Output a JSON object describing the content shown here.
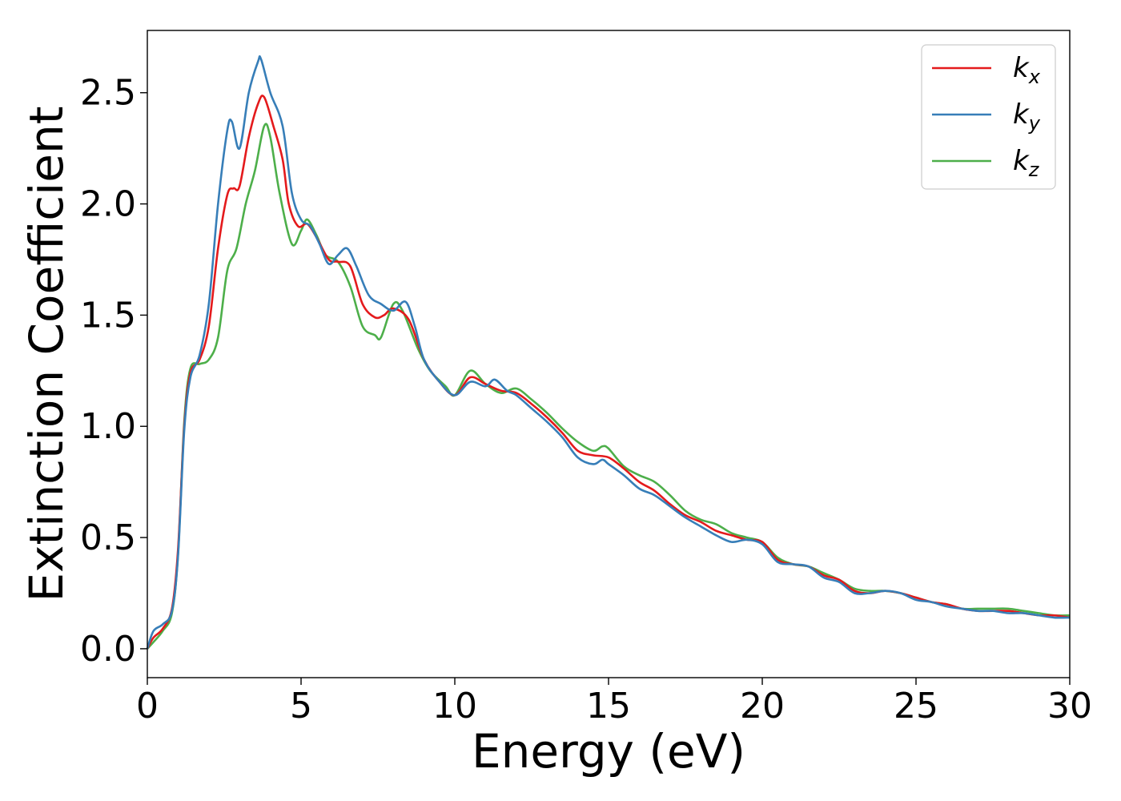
{
  "chart_data": {
    "type": "line",
    "xlabel": "Energy (eV)",
    "ylabel": "Extinction Coefficient",
    "xlim": [
      0,
      30
    ],
    "ylim": [
      -0.13,
      2.78
    ],
    "x_ticks": [
      0,
      5,
      10,
      15,
      20,
      25,
      30
    ],
    "y_ticks": [
      0.0,
      0.5,
      1.0,
      1.5,
      2.0,
      2.5
    ],
    "x_tick_labels": [
      "0",
      "5",
      "10",
      "15",
      "20",
      "25",
      "30"
    ],
    "y_tick_labels": [
      "0.0",
      "0.5",
      "1.0",
      "1.5",
      "2.0",
      "2.5"
    ],
    "grid": false,
    "legend_position": "top-right",
    "series": [
      {
        "name": "k_x",
        "label_base": "k",
        "label_sub": "x",
        "color": "#e41a1c",
        "points": [
          [
            0,
            0.0
          ],
          [
            0.2,
            0.05
          ],
          [
            0.5,
            0.09
          ],
          [
            0.8,
            0.18
          ],
          [
            1.0,
            0.45
          ],
          [
            1.2,
            1.0
          ],
          [
            1.4,
            1.24
          ],
          [
            1.7,
            1.3
          ],
          [
            2.0,
            1.45
          ],
          [
            2.3,
            1.8
          ],
          [
            2.6,
            2.04
          ],
          [
            2.8,
            2.07
          ],
          [
            3.0,
            2.08
          ],
          [
            3.3,
            2.3
          ],
          [
            3.6,
            2.45
          ],
          [
            3.8,
            2.48
          ],
          [
            4.1,
            2.35
          ],
          [
            4.4,
            2.2
          ],
          [
            4.6,
            2.0
          ],
          [
            4.9,
            1.9
          ],
          [
            5.2,
            1.91
          ],
          [
            5.5,
            1.85
          ],
          [
            5.9,
            1.75
          ],
          [
            6.2,
            1.74
          ],
          [
            6.6,
            1.72
          ],
          [
            7.0,
            1.55
          ],
          [
            7.4,
            1.49
          ],
          [
            7.7,
            1.5
          ],
          [
            8.0,
            1.53
          ],
          [
            8.5,
            1.48
          ],
          [
            9.0,
            1.3
          ],
          [
            9.5,
            1.2
          ],
          [
            10.0,
            1.14
          ],
          [
            10.5,
            1.22
          ],
          [
            11.0,
            1.19
          ],
          [
            11.5,
            1.16
          ],
          [
            12.0,
            1.15
          ],
          [
            12.5,
            1.1
          ],
          [
            13.0,
            1.04
          ],
          [
            13.5,
            0.97
          ],
          [
            14.0,
            0.89
          ],
          [
            14.5,
            0.87
          ],
          [
            15.0,
            0.86
          ],
          [
            15.5,
            0.81
          ],
          [
            16.0,
            0.75
          ],
          [
            16.5,
            0.71
          ],
          [
            17.0,
            0.65
          ],
          [
            17.5,
            0.6
          ],
          [
            18.0,
            0.57
          ],
          [
            18.5,
            0.53
          ],
          [
            19.0,
            0.51
          ],
          [
            19.5,
            0.49
          ],
          [
            20.0,
            0.48
          ],
          [
            20.5,
            0.4
          ],
          [
            21.0,
            0.38
          ],
          [
            21.5,
            0.37
          ],
          [
            22.0,
            0.33
          ],
          [
            22.5,
            0.31
          ],
          [
            23.0,
            0.26
          ],
          [
            23.5,
            0.25
          ],
          [
            24.0,
            0.26
          ],
          [
            24.5,
            0.25
          ],
          [
            25.0,
            0.23
          ],
          [
            25.5,
            0.21
          ],
          [
            26.0,
            0.2
          ],
          [
            26.5,
            0.18
          ],
          [
            27.0,
            0.17
          ],
          [
            27.5,
            0.17
          ],
          [
            28.0,
            0.17
          ],
          [
            28.5,
            0.16
          ],
          [
            29.0,
            0.15
          ],
          [
            29.5,
            0.15
          ],
          [
            30.0,
            0.14
          ]
        ]
      },
      {
        "name": "k_y",
        "label_base": "k",
        "label_sub": "y",
        "color": "#377eb8",
        "points": [
          [
            0,
            0.0
          ],
          [
            0.2,
            0.08
          ],
          [
            0.5,
            0.11
          ],
          [
            0.8,
            0.17
          ],
          [
            1.0,
            0.42
          ],
          [
            1.2,
            0.98
          ],
          [
            1.4,
            1.22
          ],
          [
            1.7,
            1.32
          ],
          [
            2.0,
            1.55
          ],
          [
            2.3,
            2.0
          ],
          [
            2.6,
            2.33
          ],
          [
            2.75,
            2.37
          ],
          [
            3.0,
            2.25
          ],
          [
            3.3,
            2.5
          ],
          [
            3.6,
            2.64
          ],
          [
            3.7,
            2.65
          ],
          [
            4.0,
            2.5
          ],
          [
            4.4,
            2.35
          ],
          [
            4.7,
            2.05
          ],
          [
            5.0,
            1.93
          ],
          [
            5.3,
            1.9
          ],
          [
            5.6,
            1.82
          ],
          [
            5.9,
            1.73
          ],
          [
            6.2,
            1.77
          ],
          [
            6.5,
            1.8
          ],
          [
            6.8,
            1.72
          ],
          [
            7.2,
            1.59
          ],
          [
            7.6,
            1.55
          ],
          [
            8.0,
            1.52
          ],
          [
            8.4,
            1.56
          ],
          [
            8.7,
            1.45
          ],
          [
            9.0,
            1.3
          ],
          [
            9.5,
            1.2
          ],
          [
            10.0,
            1.14
          ],
          [
            10.5,
            1.2
          ],
          [
            11.0,
            1.18
          ],
          [
            11.3,
            1.21
          ],
          [
            11.7,
            1.16
          ],
          [
            12.0,
            1.14
          ],
          [
            12.5,
            1.08
          ],
          [
            13.0,
            1.02
          ],
          [
            13.5,
            0.95
          ],
          [
            14.0,
            0.86
          ],
          [
            14.5,
            0.83
          ],
          [
            14.8,
            0.85
          ],
          [
            15.0,
            0.83
          ],
          [
            15.5,
            0.78
          ],
          [
            16.0,
            0.72
          ],
          [
            16.5,
            0.69
          ],
          [
            17.0,
            0.64
          ],
          [
            17.5,
            0.59
          ],
          [
            18.0,
            0.55
          ],
          [
            18.5,
            0.51
          ],
          [
            19.0,
            0.48
          ],
          [
            19.5,
            0.49
          ],
          [
            20.0,
            0.47
          ],
          [
            20.5,
            0.39
          ],
          [
            21.0,
            0.38
          ],
          [
            21.5,
            0.37
          ],
          [
            22.0,
            0.32
          ],
          [
            22.5,
            0.3
          ],
          [
            23.0,
            0.25
          ],
          [
            23.5,
            0.25
          ],
          [
            24.0,
            0.26
          ],
          [
            24.5,
            0.25
          ],
          [
            25.0,
            0.22
          ],
          [
            25.5,
            0.21
          ],
          [
            26.0,
            0.19
          ],
          [
            26.5,
            0.18
          ],
          [
            27.0,
            0.17
          ],
          [
            27.5,
            0.17
          ],
          [
            28.0,
            0.16
          ],
          [
            28.5,
            0.16
          ],
          [
            29.0,
            0.15
          ],
          [
            29.5,
            0.14
          ],
          [
            30.0,
            0.14
          ]
        ]
      },
      {
        "name": "k_z",
        "label_base": "k",
        "label_sub": "z",
        "color": "#4daf4a",
        "points": [
          [
            0,
            0.0
          ],
          [
            0.2,
            0.03
          ],
          [
            0.5,
            0.08
          ],
          [
            0.8,
            0.16
          ],
          [
            1.0,
            0.43
          ],
          [
            1.2,
            1.02
          ],
          [
            1.4,
            1.26
          ],
          [
            1.7,
            1.28
          ],
          [
            2.0,
            1.3
          ],
          [
            2.3,
            1.4
          ],
          [
            2.6,
            1.7
          ],
          [
            2.9,
            1.8
          ],
          [
            3.2,
            2.0
          ],
          [
            3.5,
            2.15
          ],
          [
            3.8,
            2.35
          ],
          [
            4.0,
            2.3
          ],
          [
            4.3,
            2.05
          ],
          [
            4.7,
            1.82
          ],
          [
            5.0,
            1.88
          ],
          [
            5.2,
            1.93
          ],
          [
            5.5,
            1.86
          ],
          [
            5.8,
            1.77
          ],
          [
            6.2,
            1.74
          ],
          [
            6.6,
            1.63
          ],
          [
            7.0,
            1.45
          ],
          [
            7.4,
            1.41
          ],
          [
            7.6,
            1.4
          ],
          [
            8.0,
            1.55
          ],
          [
            8.3,
            1.52
          ],
          [
            8.8,
            1.35
          ],
          [
            9.2,
            1.25
          ],
          [
            9.7,
            1.18
          ],
          [
            10.0,
            1.14
          ],
          [
            10.5,
            1.25
          ],
          [
            11.0,
            1.19
          ],
          [
            11.5,
            1.15
          ],
          [
            12.0,
            1.17
          ],
          [
            12.5,
            1.12
          ],
          [
            13.0,
            1.06
          ],
          [
            13.5,
            0.99
          ],
          [
            14.0,
            0.93
          ],
          [
            14.5,
            0.89
          ],
          [
            14.8,
            0.91
          ],
          [
            15.0,
            0.9
          ],
          [
            15.5,
            0.82
          ],
          [
            16.0,
            0.78
          ],
          [
            16.5,
            0.75
          ],
          [
            17.0,
            0.69
          ],
          [
            17.5,
            0.62
          ],
          [
            18.0,
            0.58
          ],
          [
            18.5,
            0.56
          ],
          [
            19.0,
            0.52
          ],
          [
            19.5,
            0.5
          ],
          [
            20.0,
            0.48
          ],
          [
            20.5,
            0.41
          ],
          [
            21.0,
            0.38
          ],
          [
            21.5,
            0.37
          ],
          [
            22.0,
            0.34
          ],
          [
            22.5,
            0.31
          ],
          [
            23.0,
            0.27
          ],
          [
            23.5,
            0.26
          ],
          [
            24.0,
            0.26
          ],
          [
            24.5,
            0.25
          ],
          [
            25.0,
            0.23
          ],
          [
            25.5,
            0.21
          ],
          [
            26.0,
            0.2
          ],
          [
            26.5,
            0.18
          ],
          [
            27.0,
            0.18
          ],
          [
            27.5,
            0.18
          ],
          [
            28.0,
            0.18
          ],
          [
            28.5,
            0.17
          ],
          [
            29.0,
            0.16
          ],
          [
            29.5,
            0.15
          ],
          [
            30.0,
            0.15
          ]
        ]
      }
    ]
  }
}
